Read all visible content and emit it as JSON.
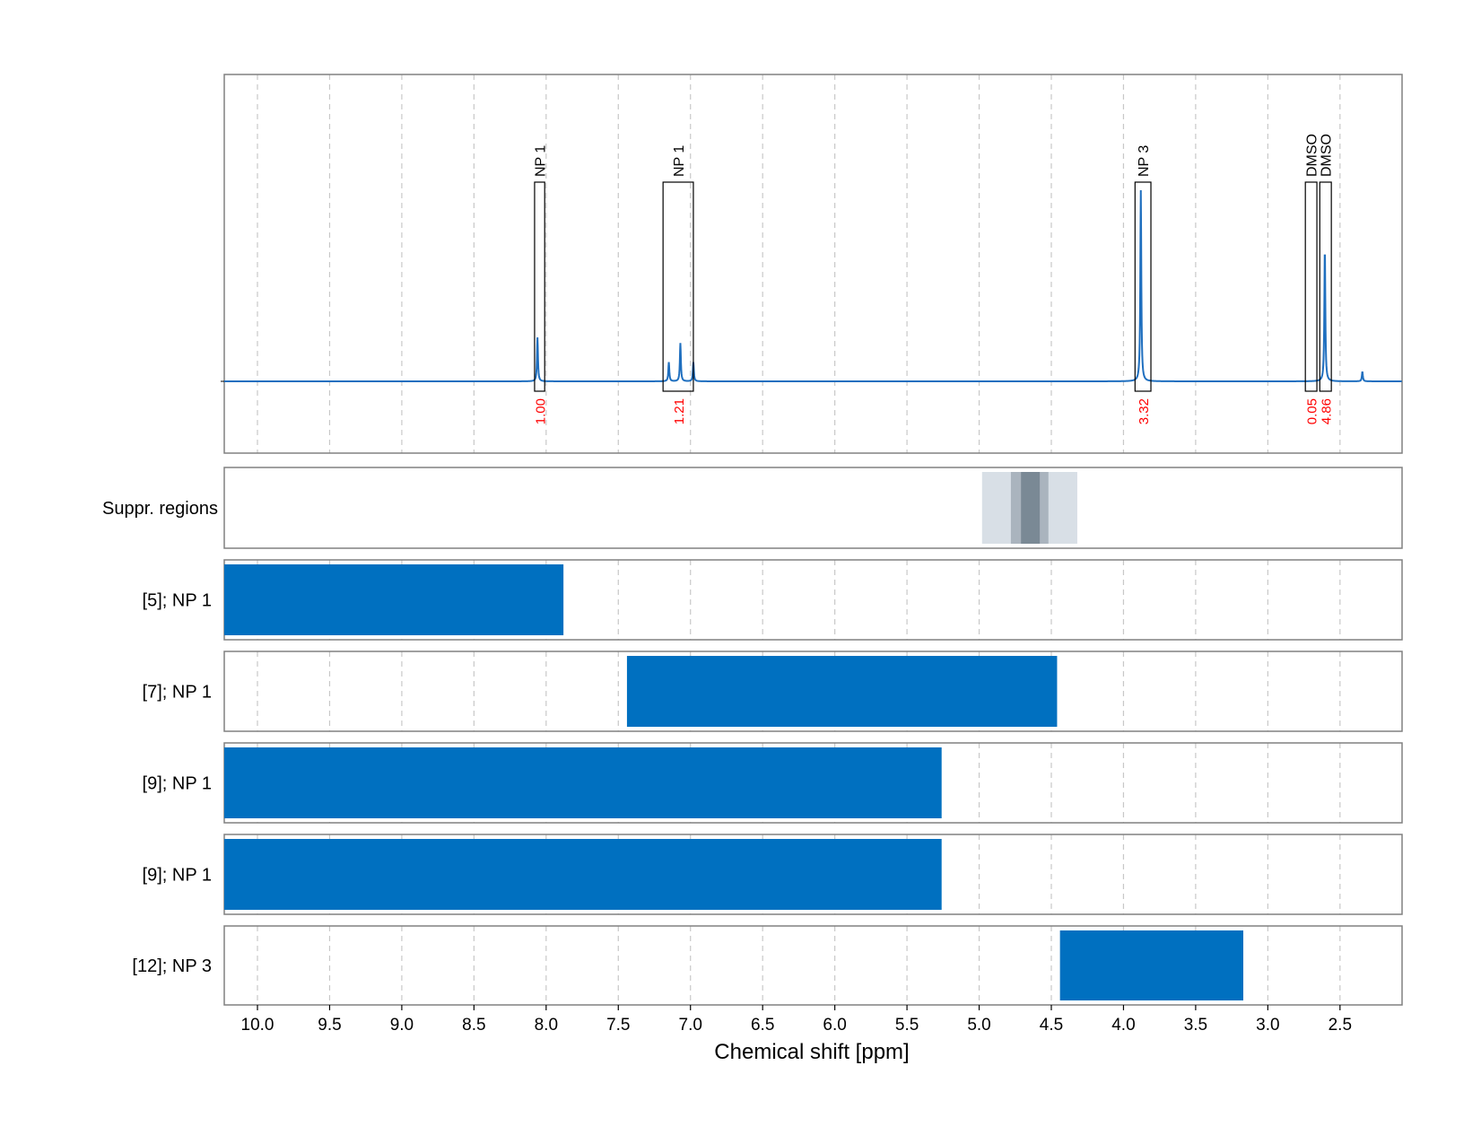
{
  "chart_data": {
    "type": "nmr_spectrum",
    "xlabel": "Chemical shift [ppm]",
    "xlim": [
      10.23,
      2.07
    ],
    "x_reversed": true,
    "x_ticks": [
      10.0,
      9.5,
      9.0,
      8.5,
      8.0,
      7.5,
      7.0,
      6.5,
      6.0,
      5.5,
      5.0,
      4.5,
      4.0,
      3.5,
      3.0,
      2.5
    ],
    "x_tick_labels": [
      "10.0",
      "9.5",
      "9.0",
      "8.5",
      "8.0",
      "7.5",
      "7.0",
      "6.5",
      "6.0",
      "5.5",
      "5.0",
      "4.5",
      "4.0",
      "3.5",
      "3.0",
      "2.5"
    ],
    "grid": "vertical dashed at major ticks",
    "spectrum": {
      "color": "#1f6fbf",
      "baseline": 0,
      "ylim": [
        -0.45,
        1.55
      ],
      "peaks": [
        {
          "ppm": 8.06,
          "height": 0.23
        },
        {
          "ppm": 7.15,
          "height": 0.1
        },
        {
          "ppm": 7.07,
          "height": 0.2
        },
        {
          "ppm": 6.98,
          "height": 0.1
        },
        {
          "ppm": 3.88,
          "height": 1.0
        },
        {
          "ppm": 2.605,
          "height": 0.7
        },
        {
          "ppm": 2.345,
          "height": 0.05
        }
      ]
    },
    "integration_regions": [
      {
        "label": "NP 1",
        "from": 8.08,
        "to": 8.01,
        "integral": "1.00"
      },
      {
        "label": "NP 1",
        "from": 7.19,
        "to": 6.98,
        "integral": "1.21"
      },
      {
        "label": "NP 3",
        "from": 3.92,
        "to": 3.81,
        "integral": "3.32"
      },
      {
        "label": "DMSO",
        "from": 2.74,
        "to": 2.66,
        "integral": "0.05"
      },
      {
        "label": "DMSO",
        "from": 2.64,
        "to": 2.56,
        "integral": "4.86"
      }
    ],
    "integral_label_color": "#ff0000",
    "suppression": {
      "label": "Suppr. regions",
      "bands": [
        {
          "from": 4.98,
          "to": 4.32,
          "color": "#d8dfe6"
        },
        {
          "from": 4.78,
          "to": 4.52,
          "color": "#aab4be"
        },
        {
          "from": 4.71,
          "to": 4.58,
          "color": "#7a8995"
        }
      ]
    },
    "range_tracks": [
      {
        "label": "[5]; NP 1",
        "from": 10.23,
        "to": 7.88
      },
      {
        "label": "[7]; NP 1",
        "from": 7.44,
        "to": 4.46
      },
      {
        "label": "[9]; NP 1",
        "from": 10.23,
        "to": 5.26
      },
      {
        "label": "[9]; NP 1",
        "from": 10.23,
        "to": 5.26
      },
      {
        "label": "[12]; NP 3",
        "from": 4.44,
        "to": 3.17
      }
    ],
    "bar_color": "#0070c0"
  }
}
